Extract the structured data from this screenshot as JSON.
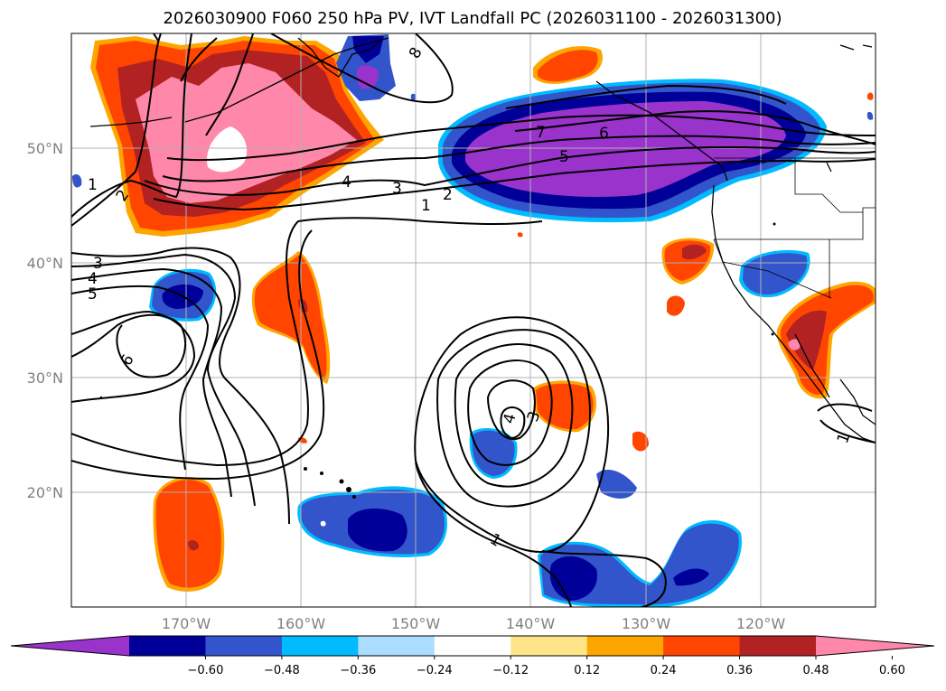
{
  "title": "2026030900 F060 250 hPa PV, IVT Landfall PC (2026031100 - 2026031300)",
  "map": {
    "lon_range": [
      -180,
      -110
    ],
    "lat_range": [
      10,
      60
    ],
    "lon_ticks": [
      "170°W",
      "160°W",
      "150°W",
      "140°W",
      "130°W",
      "120°W"
    ],
    "lat_ticks": [
      "50°N",
      "40°N",
      "30°N",
      "20°N"
    ],
    "grid": true
  },
  "colorbar": {
    "ticks": [
      "−0.60",
      "−0.48",
      "−0.36",
      "−0.24",
      "−0.12",
      "0.12",
      "0.24",
      "0.36",
      "0.48",
      "0.60"
    ],
    "colors": [
      "#9933cc",
      "#000099",
      "#3355cc",
      "#00bbff",
      "#aaddff",
      "#ffffff",
      "#ffe58a",
      "#ffa500",
      "#ff4500",
      "#b22222",
      "#ff88aa"
    ],
    "extend": "both"
  },
  "contour_labels": [
    "8",
    "7",
    "6",
    "5",
    "4",
    "3",
    "2",
    "1",
    "1",
    "2",
    "3",
    "4",
    "5",
    "6",
    "4",
    "3",
    "1",
    "1"
  ]
}
